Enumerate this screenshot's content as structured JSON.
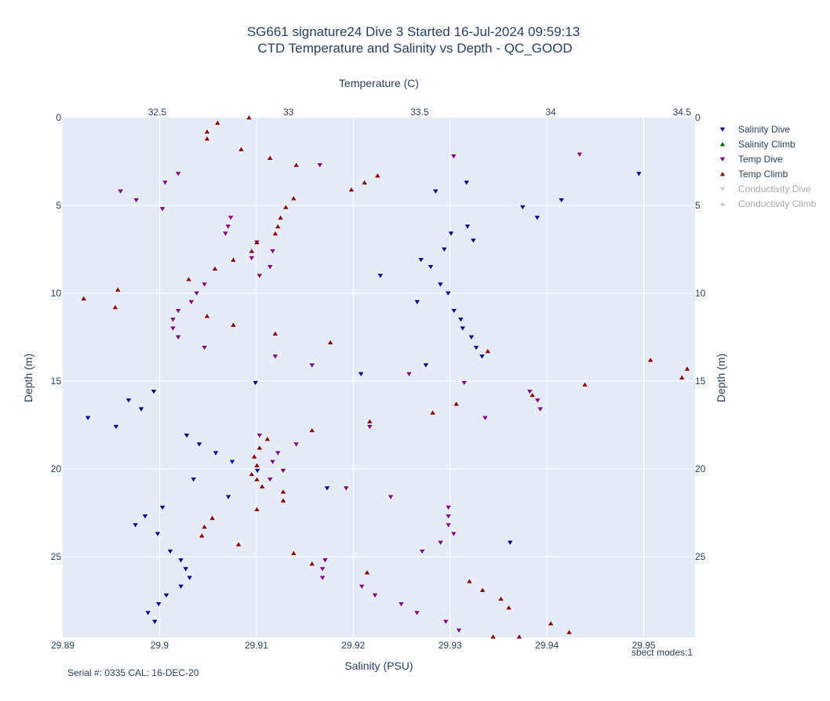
{
  "chart_data": {
    "type": "scatter",
    "title": "SG661 signature24 Dive 3 Started 16-Jul-2024 09:59:13",
    "subtitle": "CTD Temperature and Salinity vs Depth - QC_GOOD",
    "xlabel": "Salinity (PSU)",
    "x2label": "Temperature (C)",
    "ylabel": "Depth (m)",
    "xlim": [
      29.89,
      29.9553
    ],
    "x2lim": [
      32.14,
      34.55
    ],
    "ylim": [
      29.6,
      0
    ],
    "x_ticks": [
      "29.89",
      "29.9",
      "29.91",
      "29.92",
      "29.93",
      "29.94",
      "29.95"
    ],
    "x2_ticks": [
      "32.5",
      "33",
      "33.5",
      "34",
      "34.5"
    ],
    "y_ticks": [
      "0",
      "5",
      "10",
      "15",
      "20",
      "25"
    ],
    "grid": true,
    "legend_position": "right",
    "annotations": {
      "serial": "Serial #: 0335  CAL: 16-DEC-20",
      "modes": "sbect modes:1"
    },
    "series": [
      {
        "name": "Salinity Dive",
        "axis": "x",
        "marker": "triangle-down",
        "color": "#00008b",
        "visible": true,
        "points": [
          [
            29.9495,
            3.2
          ],
          [
            29.9317,
            3.7
          ],
          [
            29.9285,
            4.2
          ],
          [
            29.9415,
            4.7
          ],
          [
            29.9375,
            5.1
          ],
          [
            29.939,
            5.7
          ],
          [
            29.9318,
            6.2
          ],
          [
            29.9301,
            6.6
          ],
          [
            29.9324,
            7.0
          ],
          [
            29.9294,
            7.5
          ],
          [
            29.927,
            8.1
          ],
          [
            29.928,
            8.5
          ],
          [
            29.9228,
            9.0
          ],
          [
            29.929,
            9.5
          ],
          [
            29.9298,
            10.0
          ],
          [
            29.9266,
            10.5
          ],
          [
            29.9304,
            11.0
          ],
          [
            29.9311,
            11.5
          ],
          [
            29.9313,
            12.0
          ],
          [
            29.9322,
            12.5
          ],
          [
            29.9327,
            13.1
          ],
          [
            29.9333,
            13.6
          ],
          [
            29.9275,
            14.1
          ],
          [
            29.9208,
            14.6
          ],
          [
            29.9099,
            15.1
          ],
          [
            29.8994,
            15.6
          ],
          [
            29.8968,
            16.1
          ],
          [
            29.8981,
            16.6
          ],
          [
            29.8926,
            17.1
          ],
          [
            29.8955,
            17.6
          ],
          [
            29.9028,
            18.1
          ],
          [
            29.9041,
            18.6
          ],
          [
            29.9058,
            19.1
          ],
          [
            29.9075,
            19.6
          ],
          [
            29.9101,
            20.1
          ],
          [
            29.9035,
            20.6
          ],
          [
            29.9173,
            21.1
          ],
          [
            29.9071,
            21.6
          ],
          [
            29.9003,
            22.2
          ],
          [
            29.8985,
            22.7
          ],
          [
            29.8975,
            23.2
          ],
          [
            29.8998,
            23.7
          ],
          [
            29.9362,
            24.2
          ],
          [
            29.9011,
            24.7
          ],
          [
            29.9022,
            25.2
          ],
          [
            29.9027,
            25.7
          ],
          [
            29.9031,
            26.2
          ],
          [
            29.9022,
            26.7
          ],
          [
            29.9007,
            27.2
          ],
          [
            29.8999,
            27.7
          ],
          [
            29.8988,
            28.2
          ],
          [
            29.8995,
            28.7
          ]
        ]
      },
      {
        "name": "Salinity Climb",
        "axis": "x",
        "marker": "triangle-up",
        "color": "#006400",
        "visible": true,
        "points": []
      },
      {
        "name": "Temp Dive",
        "axis": "x2",
        "marker": "triangle-down",
        "color": "#800080",
        "visible": true,
        "points": [
          [
            34.11,
            2.1
          ],
          [
            33.63,
            2.2
          ],
          [
            33.12,
            2.7
          ],
          [
            32.58,
            3.2
          ],
          [
            32.53,
            3.7
          ],
          [
            32.36,
            4.2
          ],
          [
            32.42,
            4.7
          ],
          [
            32.52,
            5.2
          ],
          [
            32.78,
            5.7
          ],
          [
            32.77,
            6.2
          ],
          [
            32.76,
            6.6
          ],
          [
            32.88,
            7.1
          ],
          [
            32.94,
            7.6
          ],
          [
            32.86,
            8.0
          ],
          [
            32.93,
            8.5
          ],
          [
            32.89,
            9.0
          ],
          [
            32.68,
            9.5
          ],
          [
            32.65,
            10.0
          ],
          [
            32.63,
            10.5
          ],
          [
            32.58,
            11.0
          ],
          [
            32.56,
            11.5
          ],
          [
            32.56,
            12.0
          ],
          [
            32.58,
            12.5
          ],
          [
            32.68,
            13.1
          ],
          [
            32.95,
            13.6
          ],
          [
            33.09,
            14.1
          ],
          [
            33.46,
            14.6
          ],
          [
            33.67,
            15.1
          ],
          [
            33.92,
            15.6
          ],
          [
            33.95,
            16.1
          ],
          [
            33.96,
            16.6
          ],
          [
            33.75,
            17.1
          ],
          [
            33.31,
            17.6
          ],
          [
            32.89,
            18.1
          ],
          [
            33.03,
            18.6
          ],
          [
            32.96,
            19.1
          ],
          [
            32.94,
            19.6
          ],
          [
            32.98,
            20.1
          ],
          [
            32.93,
            20.6
          ],
          [
            33.22,
            21.1
          ],
          [
            33.39,
            21.6
          ],
          [
            33.61,
            22.2
          ],
          [
            33.61,
            22.7
          ],
          [
            33.61,
            23.2
          ],
          [
            33.63,
            23.7
          ],
          [
            33.58,
            24.2
          ],
          [
            33.51,
            24.7
          ],
          [
            33.14,
            25.2
          ],
          [
            33.13,
            25.7
          ],
          [
            33.13,
            26.2
          ],
          [
            33.28,
            26.7
          ],
          [
            33.33,
            27.2
          ],
          [
            33.43,
            27.7
          ],
          [
            33.49,
            28.2
          ],
          [
            33.6,
            28.7
          ],
          [
            33.65,
            29.2
          ]
        ]
      },
      {
        "name": "Temp Climb",
        "axis": "x2",
        "marker": "triangle-up",
        "color": "#8b0000",
        "visible": true,
        "points": [
          [
            32.85,
            0.0
          ],
          [
            32.73,
            0.3
          ],
          [
            32.69,
            0.8
          ],
          [
            32.69,
            1.2
          ],
          [
            32.82,
            1.8
          ],
          [
            32.93,
            2.3
          ],
          [
            33.03,
            2.7
          ],
          [
            33.34,
            3.3
          ],
          [
            33.29,
            3.7
          ],
          [
            33.24,
            4.1
          ],
          [
            33.02,
            4.6
          ],
          [
            32.99,
            5.1
          ],
          [
            32.97,
            5.7
          ],
          [
            32.96,
            6.2
          ],
          [
            32.95,
            6.6
          ],
          [
            32.88,
            7.1
          ],
          [
            32.86,
            7.6
          ],
          [
            32.79,
            8.1
          ],
          [
            32.72,
            8.6
          ],
          [
            32.62,
            9.2
          ],
          [
            32.35,
            9.8
          ],
          [
            32.22,
            10.3
          ],
          [
            32.34,
            10.8
          ],
          [
            32.69,
            11.3
          ],
          [
            32.79,
            11.8
          ],
          [
            32.95,
            12.3
          ],
          [
            33.16,
            12.8
          ],
          [
            33.76,
            13.3
          ],
          [
            34.38,
            13.8
          ],
          [
            34.52,
            14.3
          ],
          [
            34.5,
            14.8
          ],
          [
            34.13,
            15.2
          ],
          [
            33.93,
            15.8
          ],
          [
            33.64,
            16.3
          ],
          [
            33.55,
            16.8
          ],
          [
            33.31,
            17.3
          ],
          [
            33.09,
            17.8
          ],
          [
            32.92,
            18.3
          ],
          [
            32.89,
            18.8
          ],
          [
            32.87,
            19.3
          ],
          [
            32.88,
            19.8
          ],
          [
            32.86,
            20.3
          ],
          [
            32.88,
            20.6
          ],
          [
            32.9,
            21.0
          ],
          [
            32.98,
            21.3
          ],
          [
            32.98,
            21.8
          ],
          [
            32.88,
            22.3
          ],
          [
            32.71,
            22.8
          ],
          [
            32.68,
            23.3
          ],
          [
            32.67,
            23.8
          ],
          [
            32.81,
            24.3
          ],
          [
            33.02,
            24.8
          ],
          [
            33.09,
            25.4
          ],
          [
            33.3,
            25.9
          ],
          [
            33.69,
            26.4
          ],
          [
            33.74,
            26.9
          ],
          [
            33.81,
            27.4
          ],
          [
            33.84,
            27.9
          ],
          [
            34.0,
            28.8
          ],
          [
            34.07,
            29.3
          ],
          [
            33.88,
            29.6
          ],
          [
            33.78,
            29.6
          ]
        ]
      },
      {
        "name": "Conductivity Dive",
        "axis": "x",
        "marker": "triangle-down",
        "color": "#aaaaaa",
        "visible": false,
        "points": []
      },
      {
        "name": "Conductivity Climb",
        "axis": "x",
        "marker": "triangle-up",
        "color": "#aaaaaa",
        "visible": false,
        "points": []
      }
    ]
  }
}
